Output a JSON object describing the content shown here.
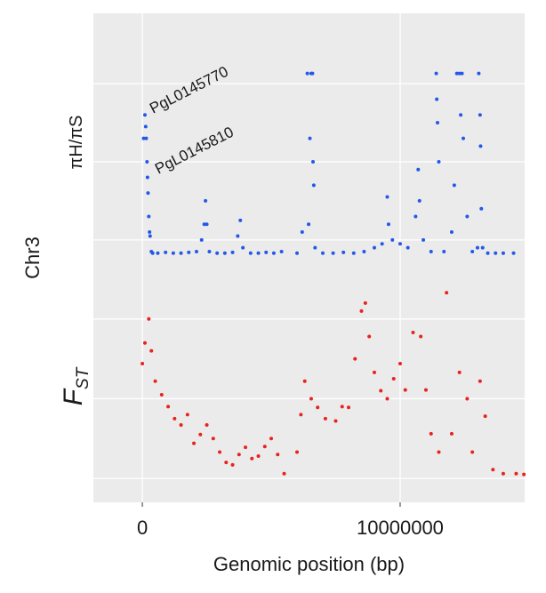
{
  "chart_data": [
    {
      "type": "scatter",
      "ylabel": "πH/πS",
      "color": "#2458e8",
      "annotations": [
        "PgL0145770",
        "PgL0145810"
      ],
      "ylim": [
        -0.4,
        2.9
      ],
      "ygrid": [
        0,
        1,
        2
      ],
      "x": [
        50000,
        100000,
        130000,
        150000,
        180000,
        200000,
        220000,
        250000,
        280000,
        300000,
        350000,
        400000,
        600000,
        900000,
        1200000,
        1500000,
        1800000,
        2100000,
        2300000,
        2400000,
        2450000,
        2500000,
        2600000,
        2900000,
        3200000,
        3500000,
        3700000,
        3800000,
        3900000,
        4200000,
        4500000,
        4800000,
        5100000,
        5400000,
        6000000,
        6200000,
        6400000,
        6450000,
        6500000,
        6550000,
        6600000,
        6620000,
        6650000,
        6700000,
        7000000,
        7400000,
        7800000,
        8200000,
        8600000,
        9000000,
        9300000,
        9500000,
        9550000,
        9700000,
        10000000,
        10300000,
        10600000,
        10700000,
        10750000,
        10900000,
        11200000,
        11400000,
        11420000,
        11450000,
        11500000,
        11700000,
        12000000,
        12100000,
        12200000,
        12300000,
        12350000,
        12400000,
        12450000,
        12600000,
        12800000,
        13000000,
        13050000,
        13100000,
        13120000,
        13150000,
        13200000,
        13400000,
        13700000,
        14000000,
        14400000
      ],
      "values": [
        1.3,
        1.6,
        1.45,
        1.3,
        1.0,
        0.8,
        0.6,
        0.3,
        0.1,
        0.05,
        -0.15,
        -0.17,
        -0.17,
        -0.16,
        -0.17,
        -0.17,
        -0.16,
        -0.15,
        0.0,
        0.2,
        0.5,
        0.2,
        -0.15,
        -0.17,
        -0.17,
        -0.16,
        0.05,
        0.25,
        -0.1,
        -0.17,
        -0.17,
        -0.16,
        -0.17,
        -0.15,
        -0.17,
        0.1,
        2.13,
        0.2,
        1.3,
        2.13,
        2.13,
        1.0,
        0.7,
        -0.1,
        -0.17,
        -0.17,
        -0.16,
        -0.17,
        -0.15,
        -0.1,
        -0.05,
        0.55,
        0.2,
        0.0,
        -0.05,
        -0.1,
        0.3,
        0.9,
        0.5,
        0.0,
        -0.15,
        2.13,
        1.8,
        1.5,
        1.0,
        -0.15,
        0.1,
        0.7,
        2.13,
        2.13,
        1.6,
        2.13,
        1.3,
        0.3,
        -0.15,
        -0.1,
        2.13,
        1.6,
        1.2,
        0.4,
        -0.1,
        -0.17,
        -0.17,
        -0.17,
        -0.17
      ]
    },
    {
      "type": "scatter",
      "ylabel": "F",
      "ylabel_subscript": "ST",
      "color": "#e8231c",
      "ylim": [
        -0.3,
        2.6
      ],
      "ygrid": [
        0,
        1,
        2
      ],
      "x": [
        0,
        100000,
        250000,
        350000,
        500000,
        750000,
        1000000,
        1250000,
        1500000,
        1750000,
        2000000,
        2250000,
        2500000,
        2750000,
        3000000,
        3250000,
        3500000,
        3750000,
        4000000,
        4250000,
        4500000,
        4750000,
        5000000,
        5250000,
        5500000,
        6000000,
        6150000,
        6300000,
        6550000,
        6800000,
        7100000,
        7500000,
        7750000,
        8000000,
        8250000,
        8500000,
        8650000,
        8800000,
        9000000,
        9250000,
        9500000,
        9750000,
        10000000,
        10200000,
        10500000,
        10800000,
        11000000,
        11200000,
        11500000,
        11800000,
        12000000,
        12300000,
        12600000,
        12800000,
        13100000,
        13300000,
        13600000,
        14000000,
        14500000,
        14800000
      ],
      "values": [
        1.44,
        1.7,
        2.0,
        1.6,
        1.22,
        1.05,
        0.9,
        0.75,
        0.67,
        0.8,
        0.44,
        0.55,
        0.67,
        0.5,
        0.33,
        0.2,
        0.17,
        0.3,
        0.39,
        0.25,
        0.28,
        0.4,
        0.5,
        0.3,
        0.06,
        0.33,
        0.8,
        1.22,
        1.0,
        0.89,
        0.75,
        0.72,
        0.9,
        0.89,
        1.5,
        2.1,
        2.2,
        1.78,
        1.33,
        1.1,
        1.0,
        1.25,
        1.44,
        1.11,
        1.83,
        1.78,
        1.11,
        0.56,
        0.33,
        2.33,
        0.56,
        1.33,
        1.0,
        0.33,
        1.22,
        0.78,
        0.11,
        0.06,
        0.06,
        0.05
      ]
    }
  ],
  "xlim": [
    -1900000,
    14830000
  ],
  "xticks": [
    0,
    10000000
  ],
  "xlabel": "Genomic position (bp)",
  "row_label": "Chr3"
}
